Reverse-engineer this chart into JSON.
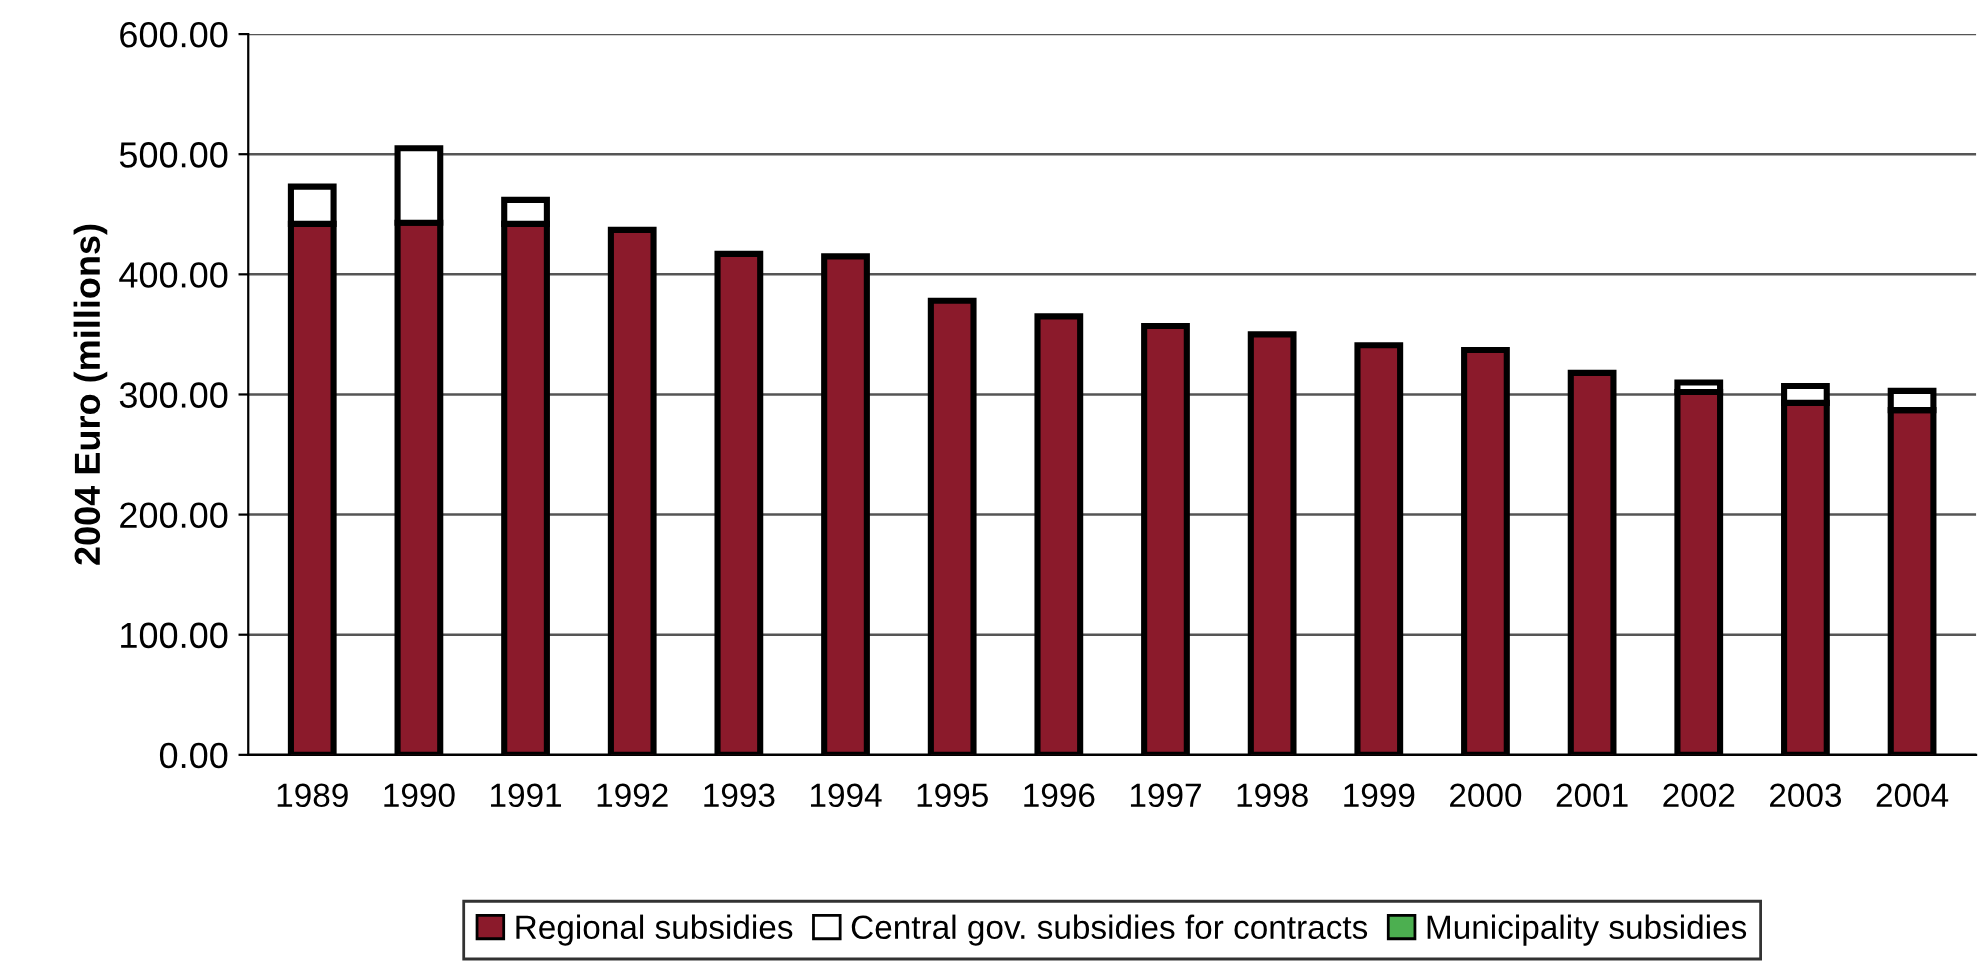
{
  "chart_data": {
    "type": "bar",
    "stacked": true,
    "ylabel": "2004 Euro (millions)",
    "categories": [
      "1989",
      "1990",
      "1991",
      "1992",
      "1993",
      "1994",
      "1995",
      "1996",
      "1997",
      "1998",
      "1999",
      "2000",
      "2001",
      "2002",
      "2003",
      "2004"
    ],
    "series": [
      {
        "name": "Regional subsidies",
        "color": "#8b1a2b",
        "values": [
          442,
          443,
          442,
          437,
          417,
          415,
          378,
          365,
          357,
          350,
          341,
          337,
          318,
          302,
          293,
          287
        ]
      },
      {
        "name": "Central gov. subsidies for contracts",
        "color": "#ffffff",
        "values": [
          31,
          62,
          20,
          0,
          0,
          0,
          0,
          0,
          0,
          0,
          0,
          0,
          0,
          8,
          14,
          16
        ]
      },
      {
        "name": "Municipality subsidies",
        "color": "#4caf50",
        "values": [
          0,
          0,
          0,
          0,
          0,
          0,
          0,
          0,
          0,
          0,
          0,
          0,
          0,
          0,
          0,
          0
        ]
      }
    ],
    "ylim": [
      0,
      600
    ],
    "yticks": [
      {
        "value": 0,
        "label": "0.00"
      },
      {
        "value": 100,
        "label": "100.00"
      },
      {
        "value": 200,
        "label": "200.00"
      },
      {
        "value": 300,
        "label": "300.00"
      },
      {
        "value": 400,
        "label": "400.00"
      },
      {
        "value": 500,
        "label": "500.00"
      },
      {
        "value": 600,
        "label": "600.00"
      }
    ],
    "grid": "y",
    "legend": "bottom"
  }
}
